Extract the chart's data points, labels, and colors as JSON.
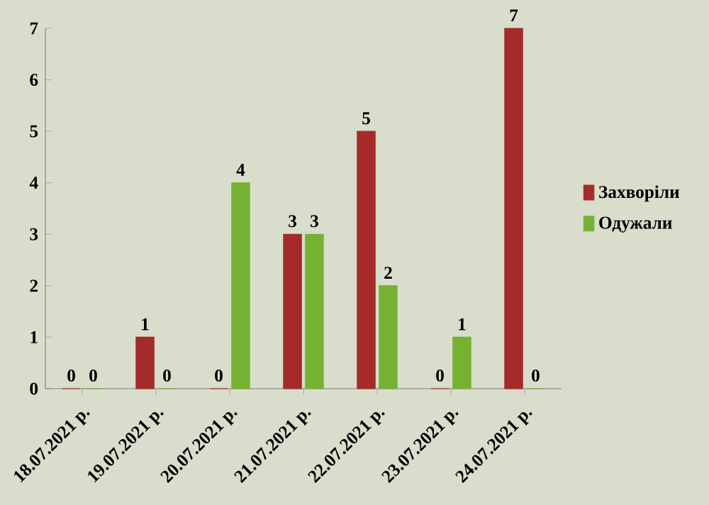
{
  "chart_data": {
    "type": "bar",
    "categories": [
      "18.07.2021 р.",
      "19.07.2021 р.",
      "20.07.2021 р.",
      "21.07.2021 р.",
      "22.07.2021 р.",
      "23.07.2021 р.",
      "24.07.2021 р."
    ],
    "series": [
      {
        "name": "Захворіли",
        "color": "#a52a2a",
        "values": [
          0,
          1,
          0,
          3,
          5,
          0,
          7
        ]
      },
      {
        "name": "Одужали",
        "color": "#76b232",
        "values": [
          0,
          0,
          4,
          3,
          2,
          1,
          0
        ]
      }
    ],
    "ylim": [
      0,
      7
    ],
    "yticks": [
      0,
      1,
      2,
      3,
      4,
      5,
      6,
      7
    ],
    "legend": "right",
    "data_labels": true
  }
}
